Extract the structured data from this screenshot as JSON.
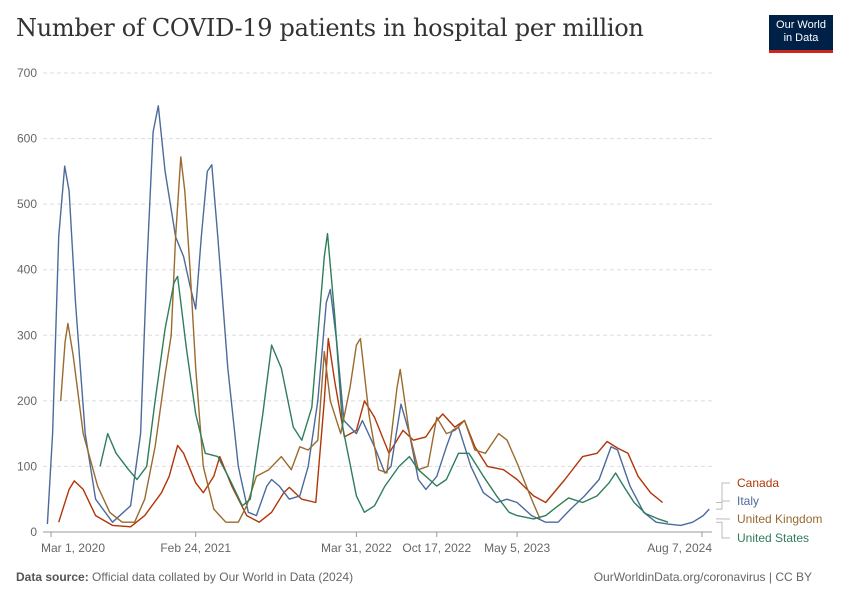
{
  "title": "Number of COVID-19 patients in hospital per million",
  "logo": {
    "line1": "Our World",
    "line2": "in Data"
  },
  "footer": {
    "source_label": "Data source:",
    "source_text": "Official data collated by Our World in Data (2024)",
    "right_text": "OurWorldinData.org/coronavirus | CC BY"
  },
  "chart_data": {
    "type": "line",
    "title": "Number of COVID-19 patients in hospital per million",
    "xlabel": "",
    "ylabel": "",
    "x_range": [
      "2020-02-10",
      "2024-09-01"
    ],
    "ylim": [
      0,
      700
    ],
    "y_ticks": [
      0,
      100,
      200,
      300,
      400,
      500,
      600,
      700
    ],
    "x_ticks": [
      {
        "date": "2020-03-01",
        "label": "Mar 1, 2020"
      },
      {
        "date": "2021-02-24",
        "label": "Feb 24, 2021"
      },
      {
        "date": "2022-03-31",
        "label": "Mar 31, 2022"
      },
      {
        "date": "2022-10-17",
        "label": "Oct 17, 2022"
      },
      {
        "date": "2023-05-05",
        "label": "May 5, 2023"
      },
      {
        "date": "2024-08-07",
        "label": "Aug 7, 2024"
      }
    ],
    "grid": "horizontal-dashed",
    "legend": "right",
    "series": [
      {
        "name": "Canada",
        "color": "#b13507",
        "points": [
          [
            "2020-03-20",
            15
          ],
          [
            "2020-04-15",
            65
          ],
          [
            "2020-04-28",
            78
          ],
          [
            "2020-05-20",
            65
          ],
          [
            "2020-06-20",
            25
          ],
          [
            "2020-08-01",
            10
          ],
          [
            "2020-09-15",
            8
          ],
          [
            "2020-10-20",
            25
          ],
          [
            "2020-12-01",
            60
          ],
          [
            "2020-12-20",
            85
          ],
          [
            "2021-01-10",
            132
          ],
          [
            "2021-01-25",
            120
          ],
          [
            "2021-02-24",
            75
          ],
          [
            "2021-03-15",
            60
          ],
          [
            "2021-04-10",
            85
          ],
          [
            "2021-04-25",
            115
          ],
          [
            "2021-05-25",
            70
          ],
          [
            "2021-07-01",
            25
          ],
          [
            "2021-08-01",
            15
          ],
          [
            "2021-09-01",
            30
          ],
          [
            "2021-10-01",
            60
          ],
          [
            "2021-10-15",
            68
          ],
          [
            "2021-11-15",
            50
          ],
          [
            "2021-12-20",
            45
          ],
          [
            "2022-01-10",
            200
          ],
          [
            "2022-01-20",
            295
          ],
          [
            "2022-02-05",
            230
          ],
          [
            "2022-03-01",
            145
          ],
          [
            "2022-03-31",
            155
          ],
          [
            "2022-04-20",
            200
          ],
          [
            "2022-05-15",
            175
          ],
          [
            "2022-06-20",
            120
          ],
          [
            "2022-07-25",
            155
          ],
          [
            "2022-08-20",
            140
          ],
          [
            "2022-09-20",
            145
          ],
          [
            "2022-10-17",
            170
          ],
          [
            "2022-11-01",
            180
          ],
          [
            "2022-12-01",
            160
          ],
          [
            "2022-12-25",
            170
          ],
          [
            "2023-01-20",
            130
          ],
          [
            "2023-02-20",
            100
          ],
          [
            "2023-04-01",
            95
          ],
          [
            "2023-05-05",
            80
          ],
          [
            "2023-06-15",
            55
          ],
          [
            "2023-07-15",
            45
          ],
          [
            "2023-09-01",
            80
          ],
          [
            "2023-10-15",
            115
          ],
          [
            "2023-11-20",
            120
          ],
          [
            "2023-12-15",
            138
          ],
          [
            "2024-01-10",
            128
          ],
          [
            "2024-02-05",
            120
          ],
          [
            "2024-03-01",
            85
          ],
          [
            "2024-04-01",
            60
          ],
          [
            "2024-05-01",
            45
          ]
        ]
      },
      {
        "name": "Italy",
        "color": "#4c6a9c",
        "points": [
          [
            "2020-02-21",
            12
          ],
          [
            "2020-03-05",
            150
          ],
          [
            "2020-03-20",
            450
          ],
          [
            "2020-04-04",
            558
          ],
          [
            "2020-04-15",
            520
          ],
          [
            "2020-05-01",
            350
          ],
          [
            "2020-05-25",
            150
          ],
          [
            "2020-06-20",
            50
          ],
          [
            "2020-08-01",
            15
          ],
          [
            "2020-09-15",
            40
          ],
          [
            "2020-10-10",
            150
          ],
          [
            "2020-10-25",
            400
          ],
          [
            "2020-11-10",
            610
          ],
          [
            "2020-11-23",
            650
          ],
          [
            "2020-12-10",
            550
          ],
          [
            "2021-01-05",
            450
          ],
          [
            "2021-01-25",
            420
          ],
          [
            "2021-02-10",
            375
          ],
          [
            "2021-02-24",
            340
          ],
          [
            "2021-03-10",
            450
          ],
          [
            "2021-03-25",
            550
          ],
          [
            "2021-04-05",
            560
          ],
          [
            "2021-04-20",
            450
          ],
          [
            "2021-05-15",
            250
          ],
          [
            "2021-06-10",
            100
          ],
          [
            "2021-07-05",
            30
          ],
          [
            "2021-07-25",
            25
          ],
          [
            "2021-08-20",
            70
          ],
          [
            "2021-09-01",
            80
          ],
          [
            "2021-09-20",
            70
          ],
          [
            "2021-10-15",
            50
          ],
          [
            "2021-11-10",
            55
          ],
          [
            "2021-12-01",
            100
          ],
          [
            "2021-12-25",
            200
          ],
          [
            "2022-01-15",
            350
          ],
          [
            "2022-01-25",
            370
          ],
          [
            "2022-02-10",
            290
          ],
          [
            "2022-02-28",
            170
          ],
          [
            "2022-03-31",
            150
          ],
          [
            "2022-04-15",
            170
          ],
          [
            "2022-05-15",
            130
          ],
          [
            "2022-06-10",
            90
          ],
          [
            "2022-06-25",
            100
          ],
          [
            "2022-07-20",
            195
          ],
          [
            "2022-08-10",
            150
          ],
          [
            "2022-09-01",
            80
          ],
          [
            "2022-09-20",
            65
          ],
          [
            "2022-10-17",
            85
          ],
          [
            "2022-11-10",
            130
          ],
          [
            "2022-11-25",
            155
          ],
          [
            "2022-12-10",
            160
          ],
          [
            "2023-01-10",
            100
          ],
          [
            "2023-02-10",
            60
          ],
          [
            "2023-03-15",
            45
          ],
          [
            "2023-04-10",
            50
          ],
          [
            "2023-05-05",
            45
          ],
          [
            "2023-06-10",
            25
          ],
          [
            "2023-07-15",
            15
          ],
          [
            "2023-08-15",
            15
          ],
          [
            "2023-09-15",
            35
          ],
          [
            "2023-10-20",
            55
          ],
          [
            "2023-11-25",
            80
          ],
          [
            "2023-12-25",
            130
          ],
          [
            "2024-01-10",
            125
          ],
          [
            "2024-02-10",
            70
          ],
          [
            "2024-03-15",
            30
          ],
          [
            "2024-04-15",
            15
          ],
          [
            "2024-05-15",
            12
          ],
          [
            "2024-06-15",
            10
          ],
          [
            "2024-07-15",
            15
          ],
          [
            "2024-08-10",
            25
          ],
          [
            "2024-08-25",
            35
          ]
        ]
      },
      {
        "name": "United Kingdom",
        "color": "#9a6a2e",
        "points": [
          [
            "2020-03-25",
            200
          ],
          [
            "2020-04-05",
            290
          ],
          [
            "2020-04-12",
            318
          ],
          [
            "2020-04-25",
            270
          ],
          [
            "2020-05-20",
            150
          ],
          [
            "2020-06-25",
            70
          ],
          [
            "2020-07-25",
            30
          ],
          [
            "2020-08-25",
            15
          ],
          [
            "2020-09-25",
            15
          ],
          [
            "2020-10-20",
            50
          ],
          [
            "2020-11-15",
            130
          ],
          [
            "2020-12-10",
            240
          ],
          [
            "2020-12-25",
            300
          ],
          [
            "2021-01-05",
            450
          ],
          [
            "2021-01-18",
            572
          ],
          [
            "2021-01-28",
            520
          ],
          [
            "2021-02-10",
            400
          ],
          [
            "2021-02-24",
            250
          ],
          [
            "2021-03-15",
            100
          ],
          [
            "2021-04-10",
            35
          ],
          [
            "2021-05-10",
            15
          ],
          [
            "2021-06-10",
            15
          ],
          [
            "2021-07-01",
            40
          ],
          [
            "2021-07-25",
            85
          ],
          [
            "2021-08-25",
            95
          ],
          [
            "2021-09-25",
            115
          ],
          [
            "2021-10-20",
            95
          ],
          [
            "2021-11-10",
            130
          ],
          [
            "2021-12-01",
            125
          ],
          [
            "2021-12-25",
            140
          ],
          [
            "2022-01-10",
            275
          ],
          [
            "2022-01-25",
            200
          ],
          [
            "2022-02-20",
            150
          ],
          [
            "2022-03-15",
            220
          ],
          [
            "2022-03-31",
            285
          ],
          [
            "2022-04-10",
            295
          ],
          [
            "2022-05-01",
            180
          ],
          [
            "2022-05-25",
            95
          ],
          [
            "2022-06-15",
            90
          ],
          [
            "2022-07-10",
            220
          ],
          [
            "2022-07-18",
            248
          ],
          [
            "2022-08-10",
            150
          ],
          [
            "2022-09-01",
            95
          ],
          [
            "2022-09-25",
            100
          ],
          [
            "2022-10-17",
            175
          ],
          [
            "2022-11-10",
            150
          ],
          [
            "2022-12-01",
            155
          ],
          [
            "2022-12-25",
            170
          ],
          [
            "2023-01-20",
            125
          ],
          [
            "2023-02-15",
            120
          ],
          [
            "2023-03-20",
            150
          ],
          [
            "2023-04-10",
            140
          ],
          [
            "2023-05-05",
            105
          ],
          [
            "2023-06-10",
            50
          ],
          [
            "2023-07-01",
            20
          ]
        ]
      },
      {
        "name": "United States",
        "color": "#2e7d5b",
        "points": [
          [
            "2020-07-01",
            100
          ],
          [
            "2020-07-20",
            150
          ],
          [
            "2020-08-10",
            120
          ],
          [
            "2020-09-10",
            95
          ],
          [
            "2020-10-01",
            80
          ],
          [
            "2020-10-25",
            100
          ],
          [
            "2020-11-15",
            200
          ],
          [
            "2020-12-10",
            310
          ],
          [
            "2021-01-01",
            380
          ],
          [
            "2021-01-10",
            390
          ],
          [
            "2021-02-01",
            280
          ],
          [
            "2021-02-24",
            180
          ],
          [
            "2021-03-20",
            120
          ],
          [
            "2021-04-20",
            115
          ],
          [
            "2021-05-20",
            80
          ],
          [
            "2021-06-20",
            40
          ],
          [
            "2021-07-10",
            50
          ],
          [
            "2021-08-10",
            180
          ],
          [
            "2021-09-01",
            285
          ],
          [
            "2021-09-25",
            250
          ],
          [
            "2021-10-25",
            160
          ],
          [
            "2021-11-15",
            140
          ],
          [
            "2021-12-10",
            190
          ],
          [
            "2021-12-25",
            300
          ],
          [
            "2022-01-10",
            420
          ],
          [
            "2022-01-18",
            455
          ],
          [
            "2022-02-05",
            330
          ],
          [
            "2022-02-25",
            160
          ],
          [
            "2022-03-31",
            55
          ],
          [
            "2022-04-20",
            30
          ],
          [
            "2022-05-15",
            40
          ],
          [
            "2022-06-10",
            70
          ],
          [
            "2022-07-15",
            100
          ],
          [
            "2022-08-10",
            115
          ],
          [
            "2022-09-01",
            95
          ],
          [
            "2022-10-17",
            70
          ],
          [
            "2022-11-10",
            80
          ],
          [
            "2022-12-10",
            120
          ],
          [
            "2023-01-05",
            120
          ],
          [
            "2023-02-10",
            85
          ],
          [
            "2023-03-15",
            55
          ],
          [
            "2023-04-15",
            30
          ],
          [
            "2023-05-05",
            25
          ],
          [
            "2023-06-15",
            20
          ],
          [
            "2023-07-15",
            25
          ],
          [
            "2023-08-15",
            40
          ],
          [
            "2023-09-10",
            52
          ],
          [
            "2023-10-15",
            45
          ],
          [
            "2023-11-20",
            55
          ],
          [
            "2023-12-20",
            75
          ],
          [
            "2024-01-05",
            90
          ],
          [
            "2024-01-25",
            70
          ],
          [
            "2024-02-20",
            45
          ],
          [
            "2024-03-20",
            28
          ],
          [
            "2024-04-20",
            20
          ],
          [
            "2024-05-15",
            15
          ]
        ]
      }
    ]
  }
}
